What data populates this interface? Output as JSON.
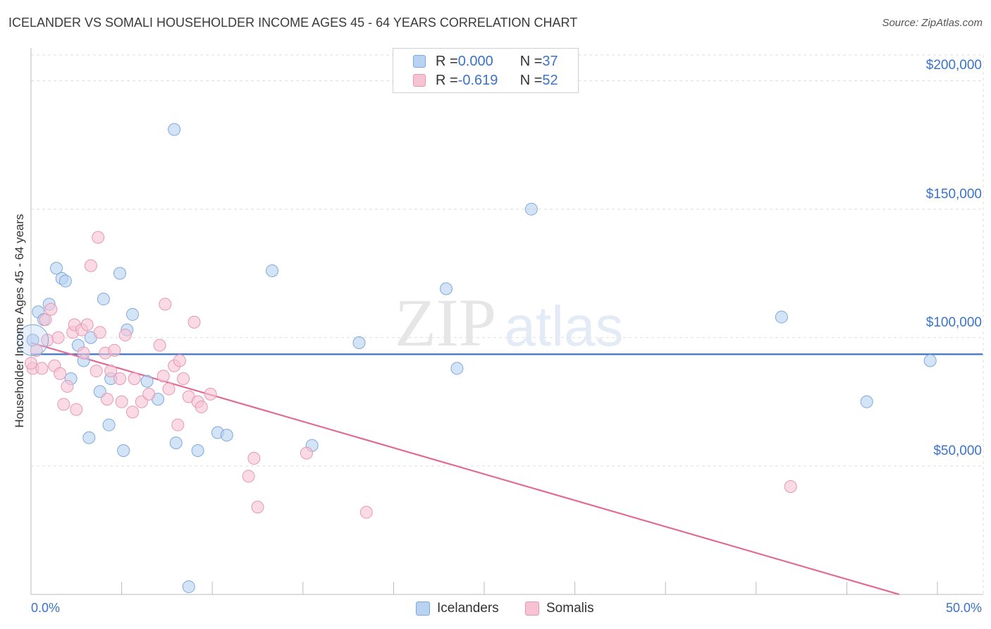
{
  "title": "ICELANDER VS SOMALI HOUSEHOLDER INCOME AGES 45 - 64 YEARS CORRELATION CHART",
  "source": "Source: ZipAtlas.com",
  "watermark": {
    "zip": "ZIP",
    "atlas": "atlas"
  },
  "colors": {
    "blue_fill": "#b8d2f2",
    "blue_stroke": "#7fa8dc",
    "blue_line": "#3b73c9",
    "pink_fill": "#f7c3d3",
    "pink_stroke": "#e897b2",
    "pink_line": "#e06c96",
    "axis_text": "#3b73c9",
    "grid": "#dddddd"
  },
  "legend": {
    "rows": [
      {
        "r_label": "R = ",
        "r_value": "0.000",
        "n_label": "N = ",
        "n_value": "37"
      },
      {
        "r_label": "R = ",
        "r_value": "-0.619",
        "n_label": "N = ",
        "n_value": "52"
      }
    ]
  },
  "bottom_legend": {
    "icelanders": "Icelanders",
    "somalis": "Somalis"
  },
  "chart_data": {
    "type": "scatter",
    "title": "ICELANDER VS SOMALI HOUSEHOLDER INCOME AGES 45 - 64 YEARS CORRELATION CHART",
    "xlabel": "",
    "ylabel": "Householder Income Ages 45 - 64 years",
    "xlim": [
      0,
      50
    ],
    "ylim": [
      0,
      210000
    ],
    "x_tick_labels": [
      "0.0%",
      "50.0%"
    ],
    "y_ticks": [
      50000,
      100000,
      150000,
      200000
    ],
    "y_tick_labels": [
      "$50,000",
      "$100,000",
      "$150,000",
      "$200,000"
    ],
    "grid": true,
    "series": [
      {
        "name": "Icelanders",
        "r": 0.0,
        "n": 37,
        "trend": {
          "x": [
            0,
            52.5
          ],
          "y": [
            93500,
            93500
          ]
        },
        "points": [
          {
            "x": 0.1,
            "y": 99000
          },
          {
            "x": 0.4,
            "y": 110000
          },
          {
            "x": 0.7,
            "y": 107000
          },
          {
            "x": 1.0,
            "y": 113000
          },
          {
            "x": 1.4,
            "y": 127000
          },
          {
            "x": 1.7,
            "y": 123000
          },
          {
            "x": 1.9,
            "y": 122000
          },
          {
            "x": 2.2,
            "y": 84000
          },
          {
            "x": 2.6,
            "y": 97000
          },
          {
            "x": 2.9,
            "y": 91000
          },
          {
            "x": 3.2,
            "y": 61000
          },
          {
            "x": 3.3,
            "y": 100000
          },
          {
            "x": 3.8,
            "y": 79000
          },
          {
            "x": 4.0,
            "y": 115000
          },
          {
            "x": 4.3,
            "y": 66000
          },
          {
            "x": 4.4,
            "y": 84000
          },
          {
            "x": 4.9,
            "y": 125000
          },
          {
            "x": 5.1,
            "y": 56000
          },
          {
            "x": 5.3,
            "y": 103000
          },
          {
            "x": 5.6,
            "y": 109000
          },
          {
            "x": 6.4,
            "y": 83000
          },
          {
            "x": 7.0,
            "y": 76000
          },
          {
            "x": 7.9,
            "y": 181000
          },
          {
            "x": 8.0,
            "y": 59000
          },
          {
            "x": 8.7,
            "y": 3000
          },
          {
            "x": 9.2,
            "y": 56000
          },
          {
            "x": 10.3,
            "y": 63000
          },
          {
            "x": 10.8,
            "y": 62000
          },
          {
            "x": 13.3,
            "y": 126000
          },
          {
            "x": 15.5,
            "y": 58000
          },
          {
            "x": 18.1,
            "y": 98000
          },
          {
            "x": 22.9,
            "y": 119000
          },
          {
            "x": 23.5,
            "y": 88000
          },
          {
            "x": 27.6,
            "y": 150000
          },
          {
            "x": 41.4,
            "y": 108000
          },
          {
            "x": 46.1,
            "y": 75000
          },
          {
            "x": 49.6,
            "y": 91000
          }
        ]
      },
      {
        "name": "Somalis",
        "r": -0.619,
        "n": 52,
        "trend": {
          "x": [
            0,
            47.9
          ],
          "y": [
            98000,
            0
          ]
        },
        "points": [
          {
            "x": 0.1,
            "y": 88000
          },
          {
            "x": 0.3,
            "y": 95000
          },
          {
            "x": 0.6,
            "y": 88000
          },
          {
            "x": 0.8,
            "y": 107000
          },
          {
            "x": 0.9,
            "y": 99000
          },
          {
            "x": 1.1,
            "y": 111000
          },
          {
            "x": 1.3,
            "y": 89000
          },
          {
            "x": 1.5,
            "y": 100000
          },
          {
            "x": 1.6,
            "y": 86000
          },
          {
            "x": 1.8,
            "y": 74000
          },
          {
            "x": 2.0,
            "y": 81000
          },
          {
            "x": 2.3,
            "y": 102000
          },
          {
            "x": 2.4,
            "y": 105000
          },
          {
            "x": 2.5,
            "y": 72000
          },
          {
            "x": 2.8,
            "y": 103000
          },
          {
            "x": 2.9,
            "y": 94000
          },
          {
            "x": 3.1,
            "y": 105000
          },
          {
            "x": 3.3,
            "y": 128000
          },
          {
            "x": 3.6,
            "y": 87000
          },
          {
            "x": 3.7,
            "y": 139000
          },
          {
            "x": 3.8,
            "y": 102000
          },
          {
            "x": 4.1,
            "y": 94000
          },
          {
            "x": 4.2,
            "y": 76000
          },
          {
            "x": 4.4,
            "y": 87000
          },
          {
            "x": 4.6,
            "y": 95000
          },
          {
            "x": 4.9,
            "y": 84000
          },
          {
            "x": 5.0,
            "y": 75000
          },
          {
            "x": 5.2,
            "y": 101000
          },
          {
            "x": 5.6,
            "y": 71000
          },
          {
            "x": 5.7,
            "y": 84000
          },
          {
            "x": 6.1,
            "y": 75000
          },
          {
            "x": 6.5,
            "y": 78000
          },
          {
            "x": 7.1,
            "y": 97000
          },
          {
            "x": 7.3,
            "y": 85000
          },
          {
            "x": 7.4,
            "y": 113000
          },
          {
            "x": 7.6,
            "y": 80000
          },
          {
            "x": 7.9,
            "y": 89000
          },
          {
            "x": 8.1,
            "y": 66000
          },
          {
            "x": 8.2,
            "y": 91000
          },
          {
            "x": 8.4,
            "y": 84000
          },
          {
            "x": 8.7,
            "y": 77000
          },
          {
            "x": 9.0,
            "y": 106000
          },
          {
            "x": 9.2,
            "y": 75000
          },
          {
            "x": 9.4,
            "y": 73000
          },
          {
            "x": 9.9,
            "y": 78000
          },
          {
            "x": 12.0,
            "y": 46000
          },
          {
            "x": 12.3,
            "y": 53000
          },
          {
            "x": 12.5,
            "y": 34000
          },
          {
            "x": 15.2,
            "y": 55000
          },
          {
            "x": 18.5,
            "y": 32000
          },
          {
            "x": 41.9,
            "y": 42000
          },
          {
            "x": 0.0,
            "y": 90000
          }
        ]
      }
    ]
  }
}
